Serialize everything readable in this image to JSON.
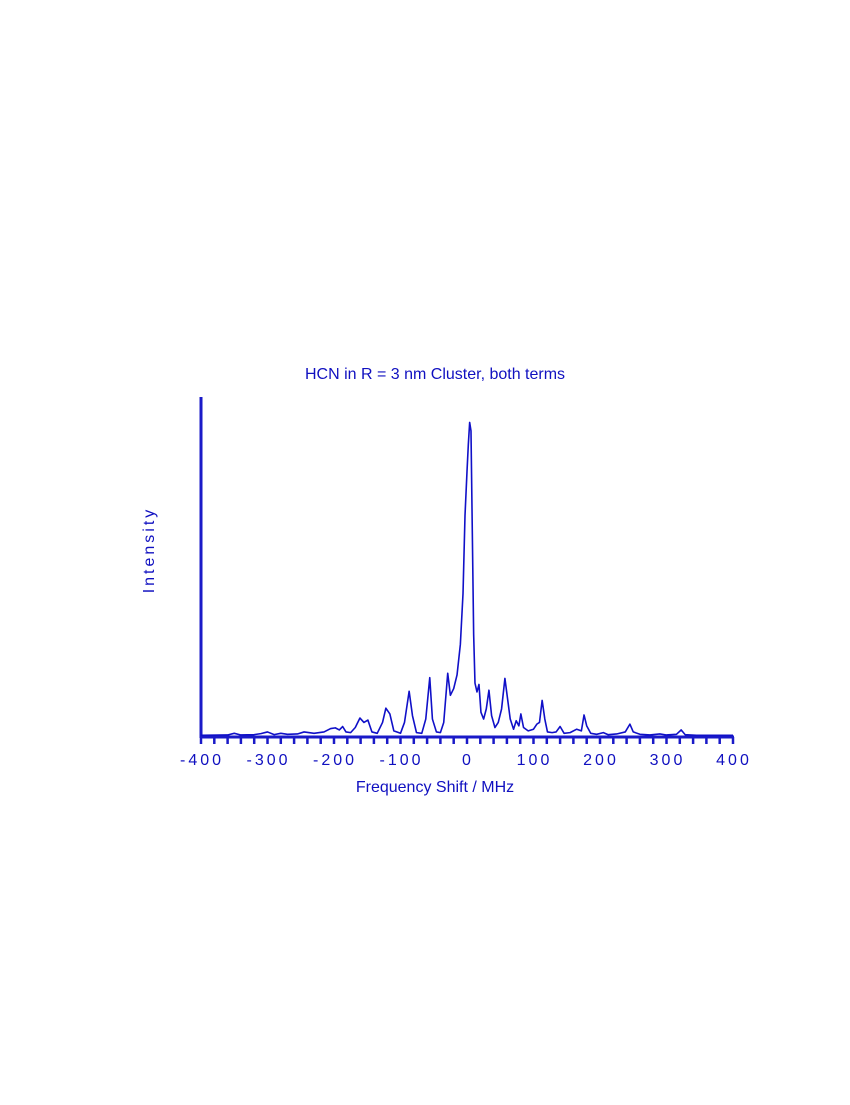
{
  "chart_data": {
    "type": "line",
    "title": "HCN in R = 3 nm Cluster, both terms",
    "xlabel": "Frequency Shift / MHz",
    "ylabel": "Intensity",
    "color": "#1010c8",
    "xlim": [
      -400,
      400
    ],
    "xticks": [
      -400,
      -300,
      -200,
      -100,
      0,
      100,
      200,
      300,
      400
    ],
    "xminorticks": [
      -380,
      -360,
      -340,
      -320,
      -280,
      -260,
      -240,
      -220,
      -180,
      -160,
      -140,
      -120,
      -80,
      -60,
      -40,
      -20,
      20,
      40,
      60,
      80,
      120,
      140,
      160,
      180,
      220,
      240,
      260,
      280,
      320,
      340,
      360,
      380
    ],
    "ylim": [
      0,
      1
    ],
    "x": [
      -400,
      -360,
      -350,
      -340,
      -320,
      -310,
      -300,
      -290,
      -280,
      -270,
      -255,
      -245,
      -230,
      -215,
      -205,
      -198,
      -192,
      -187,
      -182,
      -175,
      -168,
      -161,
      -155,
      -149,
      -143,
      -135,
      -127,
      -122,
      -116,
      -110,
      -100,
      -94,
      -87,
      -82,
      -76,
      -68,
      -62,
      -56,
      -52,
      -46,
      -40,
      -35,
      -29,
      -25,
      -20,
      -15,
      -10,
      -6,
      -3,
      0,
      2,
      4,
      6,
      8,
      10,
      12,
      15,
      18,
      21,
      25,
      29,
      33,
      37,
      42,
      47,
      52,
      57,
      61,
      65,
      70,
      74,
      78,
      81,
      85,
      92,
      100,
      105,
      109,
      113,
      117,
      121,
      128,
      134,
      140,
      146,
      155,
      165,
      172,
      176,
      180,
      186,
      195,
      205,
      212,
      225,
      238,
      245,
      250,
      260,
      275,
      290,
      300,
      315,
      322,
      328,
      345,
      400
    ],
    "values": [
      0.002,
      0.003,
      0.008,
      0.003,
      0.004,
      0.007,
      0.012,
      0.004,
      0.008,
      0.005,
      0.006,
      0.012,
      0.008,
      0.012,
      0.022,
      0.024,
      0.018,
      0.028,
      0.012,
      0.01,
      0.025,
      0.053,
      0.04,
      0.047,
      0.012,
      0.008,
      0.04,
      0.082,
      0.065,
      0.015,
      0.008,
      0.04,
      0.132,
      0.06,
      0.01,
      0.008,
      0.05,
      0.172,
      0.05,
      0.012,
      0.01,
      0.04,
      0.185,
      0.12,
      0.14,
      0.18,
      0.27,
      0.42,
      0.65,
      0.78,
      0.86,
      0.925,
      0.9,
      0.6,
      0.3,
      0.156,
      0.13,
      0.152,
      0.07,
      0.05,
      0.08,
      0.135,
      0.06,
      0.025,
      0.04,
      0.08,
      0.17,
      0.11,
      0.05,
      0.02,
      0.045,
      0.03,
      0.065,
      0.025,
      0.015,
      0.02,
      0.035,
      0.04,
      0.105,
      0.05,
      0.012,
      0.01,
      0.012,
      0.028,
      0.008,
      0.01,
      0.02,
      0.015,
      0.062,
      0.03,
      0.008,
      0.005,
      0.01,
      0.004,
      0.006,
      0.012,
      0.035,
      0.012,
      0.005,
      0.003,
      0.006,
      0.003,
      0.005,
      0.018,
      0.004,
      0.002,
      0.002
    ]
  }
}
